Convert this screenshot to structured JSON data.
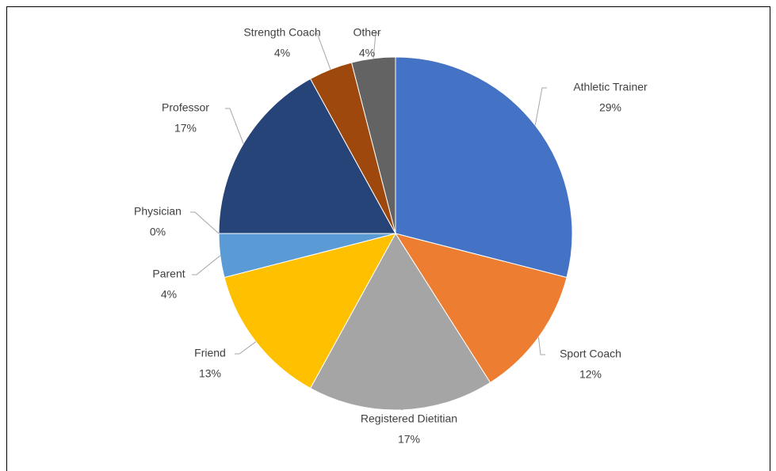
{
  "chart_data": {
    "type": "pie",
    "categories": [
      "Athletic Trainer",
      "Sport Coach",
      "Registered Dietitian",
      "Friend",
      "Parent",
      "Physician",
      "Professor",
      "Strength Coach",
      "Other"
    ],
    "values": [
      29,
      12,
      17,
      13,
      4,
      0,
      17,
      4,
      4
    ],
    "value_labels": [
      "29%",
      "12%",
      "17%",
      "13%",
      "4%",
      "0%",
      "17%",
      "4%",
      "4%"
    ],
    "colors": [
      "#4472c4",
      "#ed7d31",
      "#a5a5a5",
      "#ffc000",
      "#5b9bd5",
      "#70ad47",
      "#264478",
      "#9e480e",
      "#636363"
    ]
  }
}
